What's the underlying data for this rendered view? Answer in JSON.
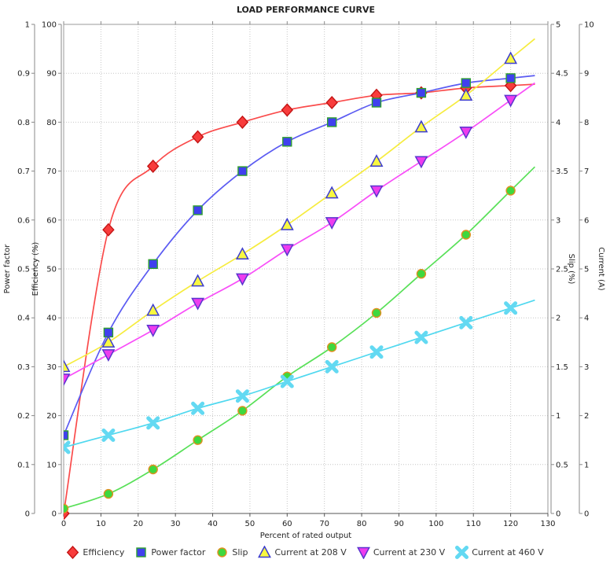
{
  "chart_data": {
    "type": "line",
    "title": "LOAD PERFORMANCE CURVE",
    "xlabel": "Percent of rated output",
    "grid": true,
    "legend_position": "bottom",
    "x_axis": {
      "min": 0,
      "max": 130,
      "step": 10
    },
    "y_axes": [
      {
        "id": "power_factor",
        "label": "Power factor",
        "min": 0,
        "max": 1,
        "step": 0.1,
        "side": "left"
      },
      {
        "id": "efficiency",
        "label": "Efficiency (%)",
        "min": 0,
        "max": 100,
        "step": 10,
        "side": "left"
      },
      {
        "id": "slip",
        "label": "Slip (%)",
        "min": 0,
        "max": 5,
        "step": 0.5,
        "side": "right"
      },
      {
        "id": "current",
        "label": "Current (A)",
        "min": 0,
        "max": 10,
        "step": 1,
        "side": "right"
      }
    ],
    "x": [
      0,
      12,
      24,
      36,
      48,
      60,
      72,
      84,
      96,
      108,
      120
    ],
    "series": [
      {
        "name": "Efficiency",
        "axis": "efficiency",
        "marker": "diamond",
        "line_color": "#fa4b4b",
        "fill": "#f83c3c",
        "edge": "#c41414",
        "values": [
          0,
          58,
          71,
          77,
          80,
          82.5,
          84,
          85.5,
          86,
          87,
          87.5
        ]
      },
      {
        "name": "Power factor",
        "axis": "power_factor",
        "marker": "square",
        "line_color": "#5b5bf2",
        "fill": "#4040ee",
        "edge": "#2fa02f",
        "values": [
          0.16,
          0.37,
          0.51,
          0.62,
          0.7,
          0.76,
          0.8,
          0.84,
          0.86,
          0.88,
          0.89
        ]
      },
      {
        "name": "Slip",
        "axis": "slip",
        "marker": "circle",
        "line_color": "#58e058",
        "fill": "#3ed83e",
        "edge": "#e09020",
        "values": [
          0.05,
          0.2,
          0.45,
          0.75,
          1.05,
          1.4,
          1.7,
          2.05,
          2.45,
          2.85,
          3.3
        ]
      },
      {
        "name": "Current at 208 V",
        "axis": "current",
        "marker": "triangle-up",
        "line_color": "#f6ec3f",
        "fill": "#f8f840",
        "edge": "#3c3cd0",
        "values": [
          3.0,
          3.5,
          4.15,
          4.75,
          5.3,
          5.9,
          6.55,
          7.2,
          7.9,
          8.55,
          9.3
        ]
      },
      {
        "name": "Current at 230 V",
        "axis": "current",
        "marker": "triangle-down",
        "line_color": "#f84ef8",
        "fill": "#ee3cee",
        "edge": "#5a35cf",
        "values": [
          2.75,
          3.25,
          3.75,
          4.3,
          4.8,
          5.4,
          5.95,
          6.6,
          7.2,
          7.8,
          8.45
        ]
      },
      {
        "name": "Current at 460 V",
        "axis": "current",
        "marker": "x",
        "line_color": "#4fd8ef",
        "fill": "#63d9f2",
        "edge": "none",
        "values": [
          1.35,
          1.6,
          1.85,
          2.15,
          2.4,
          2.7,
          3.0,
          3.3,
          3.6,
          3.9,
          4.2
        ]
      }
    ]
  }
}
